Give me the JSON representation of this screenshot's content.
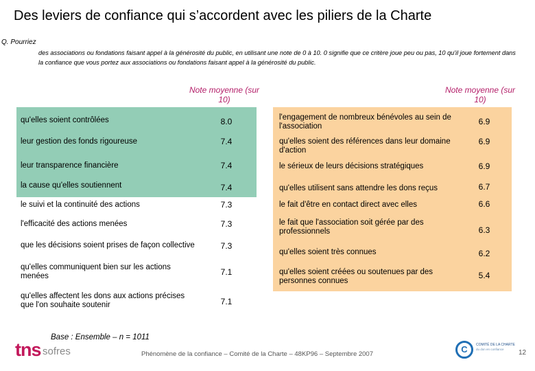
{
  "title": "Des leviers de confiance qui s’accordent avec les piliers de la Charte",
  "question": {
    "lead": "Q. Pourriez",
    "text": "des associations ou fondations faisant appel à la générosité du public, en utilisant une note de 0 à 10. 0 signifie que ce critère joue peu ou pas, 10 qu'il joue fortement dans la confiance que vous portez aux associations ou fondations faisant appel à la générosité du public."
  },
  "column_header": "Note moyenne (sur 10)",
  "left_items": [
    {
      "label": "qu'elles soient contrôlées",
      "value": "8.0"
    },
    {
      "label": "leur gestion des fonds rigoureuse",
      "value": "7.4"
    },
    {
      "label": "leur transparence financière",
      "value": "7.4"
    },
    {
      "label": "la cause qu'elles soutiennent",
      "value": "7.4"
    },
    {
      "label": "le suivi et la continuité des actions",
      "value": "7.3"
    },
    {
      "label": "l'efficacité des actions menées",
      "value": "7.3"
    },
    {
      "label": "que les décisions soient prises de façon collective",
      "value": "7.3"
    },
    {
      "label": "qu'elles communiquent bien sur les actions menées",
      "value": "7.1"
    },
    {
      "label": "qu'elles affectent les dons aux actions précises que l'on souhaite soutenir",
      "value": "7.1"
    }
  ],
  "right_items": [
    {
      "label": "l'engagement de nombreux bénévoles au sein de l'association",
      "value": "6.9"
    },
    {
      "label": "qu'elles soient des références dans leur domaine d'action",
      "value": "6.9"
    },
    {
      "label": "le sérieux de leurs décisions stratégiques",
      "value": "6.9"
    },
    {
      "label": "qu'elles utilisent sans attendre les dons reçus",
      "value": "6.7"
    },
    {
      "label": "le fait d'être en contact direct avec elles",
      "value": "6.6"
    },
    {
      "label": "le fait que l'association soit gérée par des professionnels",
      "value": "6.3"
    },
    {
      "label": "qu'elles soient très connues",
      "value": "6.2"
    },
    {
      "label": "qu'elles soient créées ou soutenues par des personnes connues",
      "value": "5.4"
    }
  ],
  "base": "Base : Ensemble – n = 1011",
  "footer": "Phénomène de la confiance – Comité de la Charte – 48KP96 – Septembre 2007",
  "page_number": "12",
  "logo_tns": {
    "tns": "tns",
    "sofres": "sofres"
  },
  "logo_charte": {
    "mark": "C",
    "line1": "COMITÉ DE LA CHARTE",
    "line2": "du don en confiance"
  },
  "colors": {
    "green_panel": "#93cdb6",
    "orange_panel": "#fbd39f",
    "accent": "#b4206a"
  }
}
